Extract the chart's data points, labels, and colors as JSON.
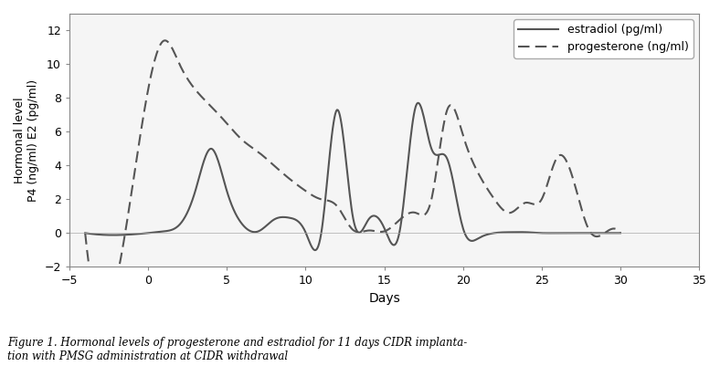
{
  "estradiol_x": [
    -4,
    0,
    1,
    2,
    3,
    4,
    5,
    6,
    7,
    8,
    9,
    10,
    11,
    12,
    13,
    14,
    15,
    16,
    17,
    18,
    19,
    20,
    21,
    22,
    23,
    24,
    25,
    26,
    27,
    28,
    29,
    30
  ],
  "estradiol_y": [
    0,
    0,
    0.1,
    0.5,
    2.5,
    5.0,
    2.5,
    0.5,
    0.1,
    0.8,
    0.9,
    0.05,
    0.0,
    7.3,
    1.0,
    0.8,
    0.3,
    0.2,
    7.5,
    5.0,
    4.4,
    0.3,
    -0.3,
    0.0,
    0.05,
    0.05,
    0.0,
    0.0,
    0.0,
    0.0,
    0.0,
    0.0
  ],
  "progesterone_x": [
    -4,
    0,
    1,
    2,
    3,
    4,
    5,
    6,
    7,
    8,
    9,
    10,
    11,
    12,
    13,
    14,
    15,
    16,
    17,
    18,
    19,
    20,
    21,
    22,
    23,
    24,
    25,
    26,
    27,
    28,
    29,
    30
  ],
  "progesterone_y": [
    0,
    8.5,
    11.4,
    10.0,
    8.5,
    7.5,
    6.5,
    5.5,
    4.8,
    4.0,
    3.2,
    2.5,
    2.0,
    1.6,
    0.2,
    0.15,
    0.1,
    0.8,
    1.2,
    2.0,
    7.3,
    5.8,
    3.5,
    2.0,
    1.2,
    1.8,
    2.0,
    4.5,
    3.2,
    0.2,
    0.0,
    0.0
  ],
  "line_color": "#555555",
  "ylabel": "Hormonal level\nP4 (ng/ml) E2 (pg/ml)",
  "xlabel": "Days",
  "xlim": [
    -5,
    35
  ],
  "ylim": [
    -2,
    13
  ],
  "yticks": [
    -2.0,
    0.0,
    2.0,
    4.0,
    6.0,
    8.0,
    10.0,
    12.0
  ],
  "xticks": [
    -5,
    0,
    5,
    10,
    15,
    20,
    25,
    30,
    35
  ],
  "legend_estradiol": "estradiol (pg/ml)",
  "legend_progesterone": "progesterone (ng/ml)",
  "figure_caption": "Figure 1. Hormonal levels of progesterone and estradiol for 11 days CIDR implanta-\ntion with PMSG administration at CIDR withdrawal",
  "bg_color": "#ffffff",
  "plot_bg_color": "#f5f5f5"
}
